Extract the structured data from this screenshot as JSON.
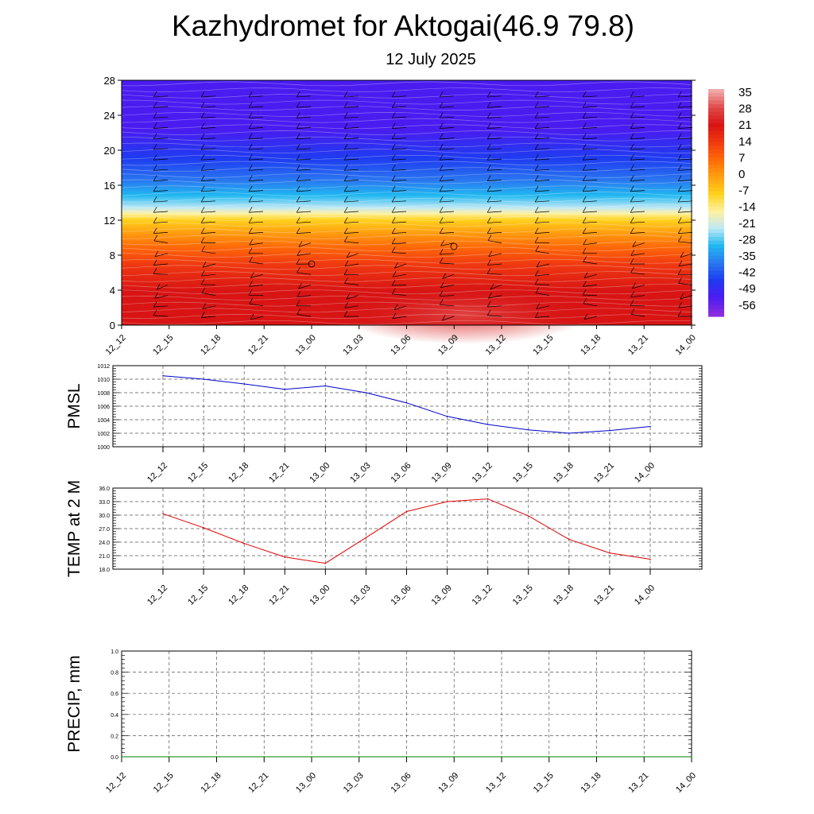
{
  "title": "Kazhydromet for Aktogai(46.9 79.8)",
  "subtitle": "12 July 2025",
  "chart_data": [
    {
      "type": "heatmap",
      "id": "upper-air-temperature",
      "xlabel": "",
      "ylabel": "",
      "x_ticks": [
        "12_12",
        "12_15",
        "12_18",
        "12_21",
        "13_00",
        "13_03",
        "13_06",
        "13_09",
        "13_12",
        "13_15",
        "13_18",
        "13_21",
        "14_00"
      ],
      "ylim": [
        0,
        28
      ],
      "y_ticks": [
        "0",
        "4",
        "8",
        "12",
        "16",
        "20",
        "24",
        "28"
      ],
      "colorbar_labels": [
        "35",
        "28",
        "21",
        "14",
        "7",
        "0",
        "-7",
        "-14",
        "-21",
        "-28",
        "-35",
        "-42",
        "-49",
        "-56"
      ],
      "colorscale": [
        "#8b2ce0",
        "#4a1cf0",
        "#1e3cf0",
        "#2a78f0",
        "#20b8f0",
        "#bfe8f5",
        "#fff0a0",
        "#ffd21e",
        "#ffa010",
        "#ff6a08",
        "#f03a10",
        "#d81414",
        "#e04848",
        "#f0a8a8"
      ],
      "wind_barbs": true
    },
    {
      "type": "line",
      "id": "pmsl",
      "ylabel": "PMSL",
      "x": [
        "12_12",
        "12_15",
        "12_18",
        "12_21",
        "13_00",
        "13_03",
        "13_06",
        "13_09",
        "13_12",
        "13_15",
        "13_18",
        "13_21",
        "14_00"
      ],
      "series": [
        {
          "name": "",
          "color": "#0000cc",
          "values": [
            1010.5,
            1010.0,
            1009.3,
            1008.5,
            1009.0,
            1008.0,
            1006.5,
            1004.5,
            1003.3,
            1002.5,
            1002.0,
            1002.4,
            1003.0
          ]
        }
      ],
      "ylim": [
        1000,
        1012
      ],
      "y_ticks": [
        "1000",
        "1002",
        "1004",
        "1006",
        "1008",
        "1010",
        "1012"
      ]
    },
    {
      "type": "line",
      "id": "temp2m",
      "ylabel": "TEMP at 2 M",
      "x": [
        "12_12",
        "12_15",
        "12_18",
        "12_21",
        "13_00",
        "13_03",
        "13_06",
        "13_09",
        "13_12",
        "13_15",
        "13_18",
        "13_21",
        "14_00"
      ],
      "series": [
        {
          "name": "",
          "color": "#e00000",
          "values": [
            30.3,
            27.2,
            23.7,
            20.7,
            19.3,
            25.0,
            30.8,
            33.0,
            33.6,
            29.8,
            24.6,
            21.6,
            20.2
          ]
        }
      ],
      "ylim": [
        18,
        36
      ],
      "y_ticks": [
        "18.0",
        "21.0",
        "24.0",
        "27.0",
        "30.0",
        "33.0",
        "36.0"
      ]
    },
    {
      "type": "line",
      "id": "precip",
      "ylabel": "PRECIP, mm",
      "x": [
        "12_12",
        "12_15",
        "12_18",
        "12_21",
        "13_00",
        "13_03",
        "13_06",
        "13_09",
        "13_12",
        "13_15",
        "13_18",
        "13_21",
        "14_00"
      ],
      "series": [
        {
          "name": "",
          "color": "#008000",
          "values": [
            0,
            0,
            0,
            0,
            0,
            0,
            0,
            0,
            0,
            0,
            0,
            0,
            0
          ]
        }
      ],
      "ylim": [
        0,
        1
      ],
      "y_ticks": [
        "0.0",
        "0.2",
        "0.4",
        "0.6",
        "0.8",
        "1.0"
      ]
    }
  ]
}
